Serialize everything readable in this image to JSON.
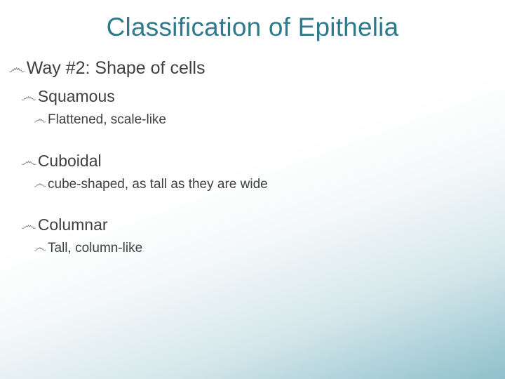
{
  "colors": {
    "title": "#2f7a8a",
    "body_text": "#404040",
    "bullet_glyph": "#8a8a8a",
    "bg_gradient_stops": [
      "#ffffff",
      "#ffffff",
      "#f4f8f9",
      "#d5e7eb",
      "#afd2da",
      "#8fc0cb"
    ]
  },
  "bullet_glyph": "෴",
  "title": "Classification of Epithelia",
  "content": {
    "heading": "Way #2: Shape of cells",
    "items": [
      {
        "name": "Squamous",
        "desc": "Flattened, scale-like"
      },
      {
        "name": "Cuboidal",
        "desc": "cube-shaped, as tall as they are wide"
      },
      {
        "name": "Columnar",
        "desc": "Tall, column-like"
      }
    ]
  }
}
